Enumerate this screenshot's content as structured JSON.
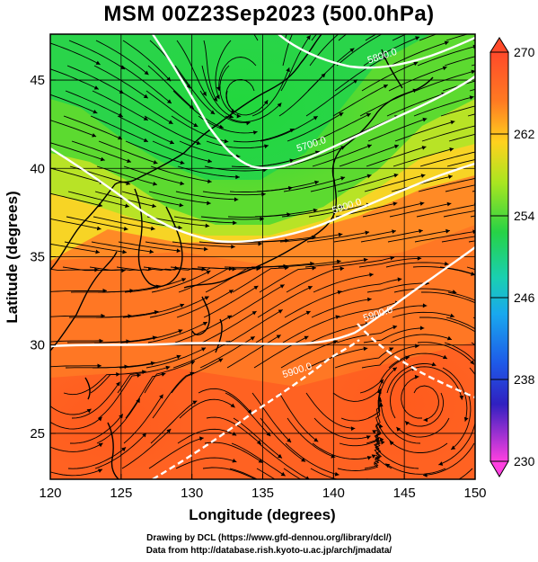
{
  "title": "MSM 00Z23Sep2023 (500.0hPa)",
  "credits": {
    "line1": "Drawing by DCL (https://www.gfd-dennou.org/library/dcl/)",
    "line2": "Data from http://database.rish.kyoto-u.ac.jp/arch/jmadata/"
  },
  "chart_data": {
    "type": "heatmap",
    "title": "MSM 00Z23Sep2023 (500.0hPa)",
    "xlabel": "Longitude (degrees)",
    "ylabel": "Latitude  (degrees)",
    "xlim": [
      120,
      150
    ],
    "ylim": [
      22.4,
      47.6
    ],
    "xticks": [
      "120",
      "125",
      "130",
      "135",
      "140",
      "145",
      "150"
    ],
    "yticks": [
      "25",
      "30",
      "35",
      "40",
      "45"
    ],
    "colorbar": {
      "range": [
        230,
        270
      ],
      "ticks": [
        "270",
        "262",
        "254",
        "246",
        "238",
        "230"
      ]
    },
    "contours": [
      {
        "label": "5700.0",
        "lon": 138.5,
        "lat": 41.2
      },
      {
        "label": "5800.0",
        "lon": 143.5,
        "lat": 46.2
      },
      {
        "label": "5900.0",
        "lon": 141.0,
        "lat": 37.7
      },
      {
        "label": "5900.0",
        "lon": 143.2,
        "lat": 31.6
      },
      {
        "label": "5900.0",
        "lon": 137.5,
        "lat": 28.4
      }
    ],
    "grid": true
  }
}
